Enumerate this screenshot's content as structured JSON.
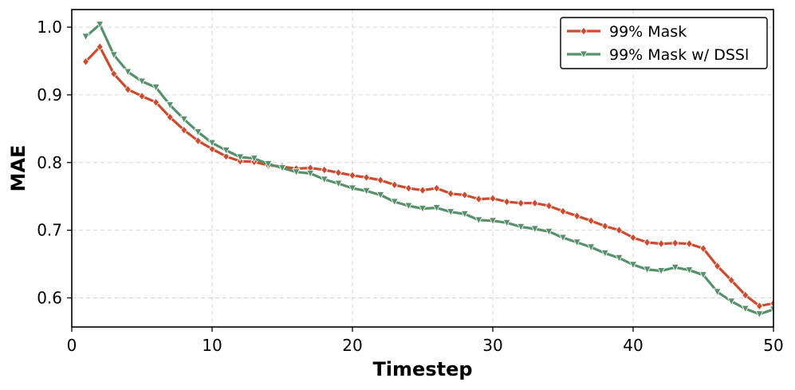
{
  "chart_data": {
    "type": "line",
    "xlabel": "Timestep",
    "ylabel": "MAE",
    "xlim": [
      0,
      50
    ],
    "ylim": [
      0.557,
      1.026
    ],
    "xticks": [
      0,
      10,
      20,
      30,
      40,
      50
    ],
    "xtick_labels": [
      "0",
      "10",
      "20",
      "30",
      "40",
      "50"
    ],
    "yticks": [
      0.6,
      0.7,
      0.8,
      0.9,
      1.0
    ],
    "ytick_labels": [
      "0.6",
      "0.7",
      "0.8",
      "0.9",
      "1.0"
    ],
    "grid": true,
    "legend_position": "top-right",
    "x": [
      1,
      2,
      3,
      4,
      5,
      6,
      7,
      8,
      9,
      10,
      11,
      12,
      13,
      14,
      15,
      16,
      17,
      18,
      19,
      20,
      21,
      22,
      23,
      24,
      25,
      26,
      27,
      28,
      29,
      30,
      31,
      32,
      33,
      34,
      35,
      36,
      37,
      38,
      39,
      40,
      41,
      42,
      43,
      44,
      45,
      46,
      47,
      48,
      49,
      50
    ],
    "series": [
      {
        "name": "99% Mask",
        "color": "#cc4a2d",
        "marker": "diamond",
        "values": [
          0.949,
          0.971,
          0.931,
          0.908,
          0.898,
          0.889,
          0.867,
          0.848,
          0.832,
          0.82,
          0.809,
          0.802,
          0.801,
          0.796,
          0.794,
          0.791,
          0.792,
          0.789,
          0.785,
          0.781,
          0.778,
          0.774,
          0.767,
          0.762,
          0.759,
          0.762,
          0.754,
          0.752,
          0.746,
          0.747,
          0.742,
          0.74,
          0.74,
          0.736,
          0.728,
          0.721,
          0.714,
          0.706,
          0.7,
          0.689,
          0.682,
          0.68,
          0.681,
          0.68,
          0.673,
          0.647,
          0.626,
          0.604,
          0.588,
          0.592
        ]
      },
      {
        "name": "99% Mask w/ DSSl",
        "color": "#56916b",
        "marker": "triangle-down",
        "values": [
          0.986,
          1.004,
          0.959,
          0.934,
          0.92,
          0.911,
          0.885,
          0.864,
          0.845,
          0.829,
          0.818,
          0.808,
          0.806,
          0.798,
          0.792,
          0.786,
          0.784,
          0.775,
          0.769,
          0.762,
          0.758,
          0.752,
          0.742,
          0.736,
          0.732,
          0.733,
          0.727,
          0.724,
          0.715,
          0.714,
          0.711,
          0.705,
          0.702,
          0.698,
          0.689,
          0.682,
          0.675,
          0.666,
          0.659,
          0.649,
          0.642,
          0.64,
          0.645,
          0.641,
          0.634,
          0.609,
          0.595,
          0.584,
          0.576,
          0.583
        ]
      }
    ]
  }
}
